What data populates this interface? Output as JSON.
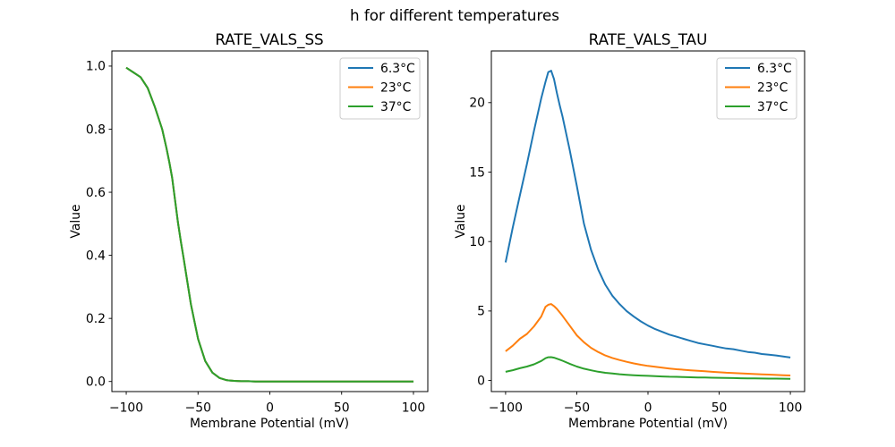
{
  "figure": {
    "title": "h for different temperatures",
    "background": "#ffffff"
  },
  "colors": {
    "series_blue": "#1f77b4",
    "series_orange": "#ff7f0e",
    "series_green": "#2ca02c",
    "axis": "#000000",
    "legend_border": "#cccccc"
  },
  "legend": {
    "entries": [
      {
        "label": "6.3°C",
        "color": "#1f77b4"
      },
      {
        "label": "23°C",
        "color": "#ff7f0e"
      },
      {
        "label": "37°C",
        "color": "#2ca02c"
      }
    ],
    "position": "upper right"
  },
  "chart_data": [
    {
      "type": "line",
      "title": "RATE_VALS_SS",
      "xlabel": "Membrane Potential (mV)",
      "ylabel": "Value",
      "xlim": [
        -110,
        110
      ],
      "ylim": [
        -0.032,
        1.048
      ],
      "xticks": [
        -100,
        -50,
        0,
        50,
        100
      ],
      "xticklabels": [
        "−100",
        "−50",
        "0",
        "50",
        "100"
      ],
      "yticks": [
        0.0,
        0.2,
        0.4,
        0.6,
        0.8,
        1.0
      ],
      "yticklabels": [
        "0.0",
        "0.2",
        "0.4",
        "0.6",
        "0.8",
        "1.0"
      ],
      "grid": false,
      "legend_position": "upper right",
      "note": "All three temperature curves overlap exactly; the green 37°C curve is drawn last and hides the others.",
      "x": [
        -100,
        -95,
        -90,
        -85,
        -80,
        -75,
        -72,
        -70,
        -68,
        -66,
        -64,
        -62,
        -60,
        -55,
        -50,
        -45,
        -40,
        -35,
        -30,
        -25,
        -20,
        -15,
        -10,
        -5,
        0,
        5,
        10,
        15,
        20,
        25,
        30,
        35,
        40,
        45,
        50,
        55,
        60,
        65,
        70,
        75,
        80,
        85,
        90,
        95,
        100
      ],
      "series": [
        {
          "name": "6.3°C",
          "color": "#1f77b4",
          "values": [
            0.995,
            0.98,
            0.965,
            0.93,
            0.87,
            0.8,
            0.74,
            0.695,
            0.645,
            0.575,
            0.505,
            0.445,
            0.39,
            0.245,
            0.135,
            0.065,
            0.028,
            0.011,
            0.004,
            0.002,
            0.001,
            0.001,
            0,
            0,
            0,
            0,
            0,
            0,
            0,
            0,
            0,
            0,
            0,
            0,
            0,
            0,
            0,
            0,
            0,
            0,
            0,
            0,
            0,
            0,
            0
          ]
        },
        {
          "name": "23°C",
          "color": "#ff7f0e",
          "values": [
            0.995,
            0.98,
            0.965,
            0.93,
            0.87,
            0.8,
            0.74,
            0.695,
            0.645,
            0.575,
            0.505,
            0.445,
            0.39,
            0.245,
            0.135,
            0.065,
            0.028,
            0.011,
            0.004,
            0.002,
            0.001,
            0.001,
            0,
            0,
            0,
            0,
            0,
            0,
            0,
            0,
            0,
            0,
            0,
            0,
            0,
            0,
            0,
            0,
            0,
            0,
            0,
            0,
            0,
            0,
            0
          ]
        },
        {
          "name": "37°C",
          "color": "#2ca02c",
          "values": [
            0.995,
            0.98,
            0.965,
            0.93,
            0.87,
            0.8,
            0.74,
            0.695,
            0.645,
            0.575,
            0.505,
            0.445,
            0.39,
            0.245,
            0.135,
            0.065,
            0.028,
            0.011,
            0.004,
            0.002,
            0.001,
            0.001,
            0,
            0,
            0,
            0,
            0,
            0,
            0,
            0,
            0,
            0,
            0,
            0,
            0,
            0,
            0,
            0,
            0,
            0,
            0,
            0,
            0,
            0,
            0
          ]
        }
      ]
    },
    {
      "type": "line",
      "title": "RATE_VALS_TAU",
      "xlabel": "Membrane Potential (mV)",
      "ylabel": "Value",
      "xlim": [
        -110,
        110
      ],
      "ylim": [
        -0.8,
        23.72
      ],
      "xticks": [
        -100,
        -50,
        0,
        50,
        100
      ],
      "xticklabels": [
        "−100",
        "−50",
        "0",
        "50",
        "100"
      ],
      "yticks": [
        0,
        5,
        10,
        15,
        20
      ],
      "yticklabels": [
        "0",
        "5",
        "10",
        "15",
        "20"
      ],
      "grid": false,
      "legend_position": "upper right",
      "note": "Bell-shaped time-constant curves peaking near −70 mV; amplitude decreases with temperature.",
      "x": [
        -100,
        -95,
        -90,
        -85,
        -80,
        -75,
        -72,
        -70,
        -68,
        -66,
        -64,
        -62,
        -60,
        -55,
        -50,
        -45,
        -40,
        -35,
        -30,
        -25,
        -20,
        -15,
        -10,
        -5,
        0,
        5,
        10,
        15,
        20,
        25,
        30,
        35,
        40,
        45,
        50,
        55,
        60,
        65,
        70,
        75,
        80,
        85,
        90,
        95,
        100
      ],
      "series": [
        {
          "name": "6.3°C",
          "color": "#1f77b4",
          "values": [
            8.5,
            11.0,
            13.3,
            15.6,
            18.0,
            20.3,
            21.5,
            22.2,
            22.3,
            21.7,
            20.7,
            19.8,
            19.0,
            16.6,
            14.0,
            11.3,
            9.4,
            8.0,
            6.9,
            6.1,
            5.5,
            5.0,
            4.6,
            4.25,
            3.95,
            3.7,
            3.5,
            3.3,
            3.15,
            3.0,
            2.85,
            2.7,
            2.6,
            2.5,
            2.4,
            2.3,
            2.25,
            2.15,
            2.05,
            2.0,
            1.9,
            1.85,
            1.8,
            1.72,
            1.65
          ]
        },
        {
          "name": "23°C",
          "color": "#ff7f0e",
          "values": [
            2.1,
            2.5,
            3.0,
            3.35,
            3.9,
            4.6,
            5.3,
            5.45,
            5.5,
            5.35,
            5.15,
            4.9,
            4.65,
            3.95,
            3.25,
            2.75,
            2.35,
            2.05,
            1.8,
            1.62,
            1.47,
            1.34,
            1.23,
            1.13,
            1.05,
            0.98,
            0.92,
            0.86,
            0.81,
            0.77,
            0.73,
            0.69,
            0.66,
            0.62,
            0.59,
            0.56,
            0.54,
            0.51,
            0.49,
            0.46,
            0.44,
            0.42,
            0.4,
            0.38,
            0.36
          ]
        },
        {
          "name": "37°C",
          "color": "#2ca02c",
          "values": [
            0.62,
            0.74,
            0.88,
            1.0,
            1.16,
            1.4,
            1.6,
            1.67,
            1.68,
            1.64,
            1.57,
            1.5,
            1.42,
            1.2,
            1.0,
            0.85,
            0.73,
            0.63,
            0.55,
            0.5,
            0.45,
            0.41,
            0.38,
            0.35,
            0.33,
            0.31,
            0.29,
            0.27,
            0.26,
            0.24,
            0.23,
            0.22,
            0.21,
            0.2,
            0.19,
            0.18,
            0.17,
            0.16,
            0.155,
            0.15,
            0.14,
            0.135,
            0.13,
            0.125,
            0.12
          ]
        }
      ]
    }
  ]
}
